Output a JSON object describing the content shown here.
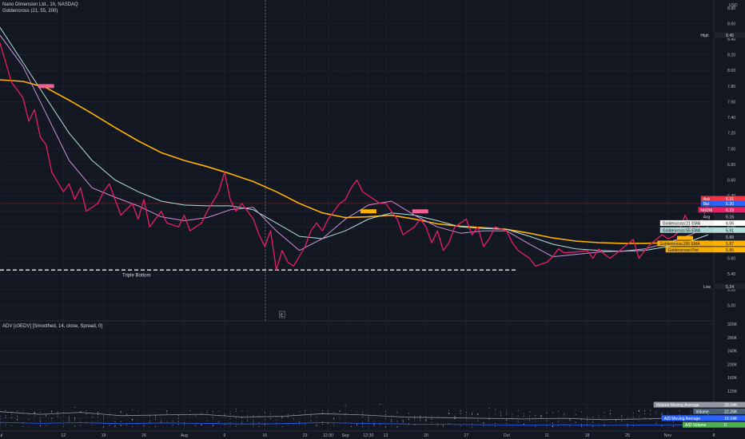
{
  "legend": {
    "symbol_line": "Nano Dimension Ltd., 1h, NASDAQ",
    "indicator_line": "Goldencross (21, 55, 200)",
    "lower_line": "ADV [c0EDV] [Smoothed, 14, close, Spread, 0]"
  },
  "currency": "USD",
  "colors": {
    "background": "#131722",
    "grid": "#1f2333",
    "price": "#e91e63",
    "ma21": "#ce93d8",
    "ma55": "#b2dfdb",
    "ma200": "#ffb300",
    "volume_ma": "#9598a1",
    "ad_ma": "#2962ff",
    "ad_volume": "#4caf50",
    "axis_text": "#b2b5be"
  },
  "chart_data": {
    "type": "line",
    "x_unit": "date",
    "x_ticks": [
      {
        "label": "Jul",
        "x": "2021-07-01"
      },
      {
        "label": "12",
        "x": "2021-07-12"
      },
      {
        "label": "19",
        "x": "2021-07-19"
      },
      {
        "label": "26",
        "x": "2021-07-26"
      },
      {
        "label": "Aug",
        "x": "2021-08-02"
      },
      {
        "label": "9",
        "x": "2021-08-09"
      },
      {
        "label": "16",
        "x": "2021-08-16"
      },
      {
        "label": "23",
        "x": "2021-08-23"
      },
      {
        "label": "12:30",
        "x": "2021-08-27"
      },
      {
        "label": "Sep",
        "x": "2021-08-30"
      },
      {
        "label": "12:30",
        "x": "2021-09-03"
      },
      {
        "label": "13",
        "x": "2021-09-06"
      },
      {
        "label": "20",
        "x": "2021-09-13"
      },
      {
        "label": "27",
        "x": "2021-09-20"
      },
      {
        "label": "Oct",
        "x": "2021-09-27"
      },
      {
        "label": "11",
        "x": "2021-10-04"
      },
      {
        "label": "18",
        "x": "2021-10-11"
      },
      {
        "label": "25",
        "x": "2021-10-18"
      },
      {
        "label": "Nov",
        "x": "2021-10-25"
      },
      {
        "label": "8",
        "x": "2021-11-02"
      }
    ],
    "x_range": [
      "2021-07-01",
      "2021-11-02"
    ],
    "price_axis": {
      "ylim": [
        4.8,
        8.9
      ],
      "ticks": [
        5.0,
        5.2,
        5.4,
        5.6,
        5.8,
        6.0,
        6.2,
        6.4,
        6.6,
        6.8,
        7.0,
        7.2,
        7.4,
        7.6,
        7.8,
        8.0,
        8.2,
        8.4,
        8.6,
        8.8
      ],
      "tick_labels": [
        "5.00",
        "5.20",
        "5.40",
        "5.60",
        "5.80",
        "6.00",
        "6.20",
        "6.40",
        "6.60",
        "6.80",
        "7.00",
        "7.20",
        "7.40",
        "7.60",
        "7.80",
        "8.00",
        "8.20",
        "8.40",
        "8.60",
        "8.80"
      ]
    },
    "volume_axis": {
      "ylim": [
        0,
        330000
      ],
      "ticks": [
        40000,
        80000,
        120000,
        160000,
        200000,
        240000,
        280000,
        320000
      ],
      "tick_labels": [
        "40K",
        "80K",
        "120K",
        "160K",
        "200K",
        "240K",
        "280K",
        "320K"
      ]
    },
    "series": [
      {
        "key": "price",
        "color": "#e91e63",
        "width": 1.3,
        "x": [
          "2021-07-01",
          "2021-07-02",
          "2021-07-03",
          "2021-07-05",
          "2021-07-06",
          "2021-07-07",
          "2021-07-08",
          "2021-07-09",
          "2021-07-10",
          "2021-07-12",
          "2021-07-13",
          "2021-07-14",
          "2021-07-15",
          "2021-07-16",
          "2021-07-18",
          "2021-07-19",
          "2021-07-20",
          "2021-07-21",
          "2021-07-22",
          "2021-07-24",
          "2021-07-25",
          "2021-07-26",
          "2021-07-27",
          "2021-07-29",
          "2021-07-30",
          "2021-08-01",
          "2021-08-02",
          "2021-08-03",
          "2021-08-05",
          "2021-08-06",
          "2021-08-08",
          "2021-08-09",
          "2021-08-10",
          "2021-08-11",
          "2021-08-12",
          "2021-08-14",
          "2021-08-15",
          "2021-08-16",
          "2021-08-17",
          "2021-08-18",
          "2021-08-19",
          "2021-08-20",
          "2021-08-21",
          "2021-08-23",
          "2021-08-24",
          "2021-08-25",
          "2021-08-26",
          "2021-08-27",
          "2021-08-28",
          "2021-08-29",
          "2021-08-30",
          "2021-08-31",
          "2021-09-01",
          "2021-09-02",
          "2021-09-03",
          "2021-09-04",
          "2021-09-05",
          "2021-09-06",
          "2021-09-07",
          "2021-09-08",
          "2021-09-09",
          "2021-09-11",
          "2021-09-12",
          "2021-09-13",
          "2021-09-14",
          "2021-09-15",
          "2021-09-16",
          "2021-09-17",
          "2021-09-18",
          "2021-09-20",
          "2021-09-21",
          "2021-09-22",
          "2021-09-23",
          "2021-09-24",
          "2021-09-25",
          "2021-09-27",
          "2021-09-28",
          "2021-09-29",
          "2021-09-30",
          "2021-10-01",
          "2021-10-02",
          "2021-10-04",
          "2021-10-05",
          "2021-10-06",
          "2021-10-07",
          "2021-10-09",
          "2021-10-11",
          "2021-10-12",
          "2021-10-13",
          "2021-10-14",
          "2021-10-15",
          "2021-10-17",
          "2021-10-18",
          "2021-10-19",
          "2021-10-20",
          "2021-10-21",
          "2021-10-22",
          "2021-10-24",
          "2021-10-25",
          "2021-10-26",
          "2021-10-27",
          "2021-10-28",
          "2021-10-29",
          "2021-10-30",
          "2021-10-31",
          "2021-11-01"
        ],
        "y": [
          8.35,
          8.1,
          7.85,
          7.65,
          7.35,
          7.5,
          7.15,
          7.05,
          6.7,
          6.45,
          6.55,
          6.35,
          6.5,
          6.2,
          6.3,
          6.45,
          6.55,
          6.35,
          6.15,
          6.3,
          6.1,
          6.35,
          6.0,
          6.2,
          6.05,
          6.0,
          6.15,
          5.95,
          6.05,
          6.2,
          6.45,
          6.7,
          6.35,
          6.2,
          6.3,
          6.1,
          5.9,
          5.75,
          5.95,
          5.45,
          5.7,
          5.55,
          5.5,
          5.75,
          5.95,
          6.05,
          5.95,
          6.1,
          6.2,
          6.3,
          6.35,
          6.5,
          6.6,
          6.45,
          6.4,
          6.35,
          6.3,
          6.3,
          6.2,
          6.1,
          5.9,
          6.0,
          6.1,
          6.0,
          5.8,
          5.95,
          5.7,
          5.8,
          6.0,
          6.1,
          5.9,
          6.0,
          5.75,
          5.85,
          6.0,
          5.95,
          5.8,
          5.7,
          5.65,
          5.6,
          5.5,
          5.55,
          5.62,
          5.72,
          5.67,
          5.68,
          5.7,
          5.6,
          5.72,
          5.65,
          5.6,
          5.72,
          5.78,
          5.84,
          5.6,
          5.7,
          5.78,
          5.9,
          5.85,
          5.88,
          5.95,
          6.15,
          6.0,
          5.95,
          6.1,
          6.3
        ]
      },
      {
        "key": "ma21",
        "color": "#ce93d8",
        "width": 1.0,
        "x": [
          "2021-07-01",
          "2021-07-05",
          "2021-07-09",
          "2021-07-13",
          "2021-07-17",
          "2021-07-21",
          "2021-07-25",
          "2021-07-29",
          "2021-08-02",
          "2021-08-06",
          "2021-08-10",
          "2021-08-14",
          "2021-08-18",
          "2021-08-22",
          "2021-08-26",
          "2021-08-30",
          "2021-09-03",
          "2021-09-07",
          "2021-09-11",
          "2021-09-15",
          "2021-09-19",
          "2021-09-23",
          "2021-09-27",
          "2021-10-01",
          "2021-10-05",
          "2021-10-09",
          "2021-10-13",
          "2021-10-17",
          "2021-10-21",
          "2021-10-25",
          "2021-10-29",
          "2021-11-01"
        ],
        "y": [
          8.45,
          8.05,
          7.45,
          6.85,
          6.5,
          6.38,
          6.27,
          6.13,
          6.08,
          6.12,
          6.22,
          6.25,
          5.95,
          5.7,
          5.85,
          6.1,
          6.28,
          6.33,
          6.15,
          6.0,
          5.92,
          5.95,
          5.95,
          5.78,
          5.62,
          5.65,
          5.68,
          5.69,
          5.72,
          5.8,
          5.9,
          6.0
        ]
      },
      {
        "key": "ma55",
        "color": "#b2dfdb",
        "width": 1.0,
        "x": [
          "2021-07-01",
          "2021-07-05",
          "2021-07-09",
          "2021-07-13",
          "2021-07-17",
          "2021-07-21",
          "2021-07-25",
          "2021-07-29",
          "2021-08-02",
          "2021-08-06",
          "2021-08-10",
          "2021-08-14",
          "2021-08-18",
          "2021-08-22",
          "2021-08-26",
          "2021-08-30",
          "2021-09-03",
          "2021-09-07",
          "2021-09-11",
          "2021-09-15",
          "2021-09-19",
          "2021-09-23",
          "2021-09-27",
          "2021-10-01",
          "2021-10-05",
          "2021-10-09",
          "2021-10-13",
          "2021-10-17",
          "2021-10-21",
          "2021-10-25",
          "2021-10-29",
          "2021-11-01"
        ],
        "y": [
          8.55,
          8.1,
          7.65,
          7.2,
          6.85,
          6.6,
          6.45,
          6.33,
          6.28,
          6.27,
          6.27,
          6.22,
          6.05,
          5.88,
          5.85,
          5.95,
          6.1,
          6.18,
          6.15,
          6.08,
          6.0,
          5.98,
          5.97,
          5.88,
          5.78,
          5.72,
          5.7,
          5.69,
          5.7,
          5.75,
          5.82,
          5.9
        ]
      },
      {
        "key": "ma200",
        "color": "#ffb300",
        "width": 1.6,
        "x": [
          "2021-07-01",
          "2021-07-05",
          "2021-07-09",
          "2021-07-13",
          "2021-07-17",
          "2021-07-21",
          "2021-07-25",
          "2021-07-29",
          "2021-08-02",
          "2021-08-06",
          "2021-08-10",
          "2021-08-14",
          "2021-08-18",
          "2021-08-22",
          "2021-08-26",
          "2021-08-30",
          "2021-09-03",
          "2021-09-07",
          "2021-09-11",
          "2021-09-15",
          "2021-09-19",
          "2021-09-23",
          "2021-09-27",
          "2021-10-01",
          "2021-10-05",
          "2021-10-09",
          "2021-10-13",
          "2021-10-17",
          "2021-10-21",
          "2021-10-25",
          "2021-10-29",
          "2021-11-01"
        ],
        "y": [
          7.88,
          7.86,
          7.78,
          7.62,
          7.45,
          7.27,
          7.1,
          6.95,
          6.85,
          6.77,
          6.68,
          6.58,
          6.45,
          6.3,
          6.18,
          6.12,
          6.13,
          6.15,
          6.1,
          6.04,
          6.01,
          5.99,
          5.97,
          5.92,
          5.86,
          5.82,
          5.8,
          5.79,
          5.79,
          5.8,
          5.81,
          5.82
        ]
      }
    ],
    "lower_series": [
      {
        "key": "volume_ma",
        "color": "#9598a1",
        "x": [
          "2021-07-01",
          "2021-07-08",
          "2021-07-15",
          "2021-07-22",
          "2021-07-29",
          "2021-08-05",
          "2021-08-12",
          "2021-08-19",
          "2021-08-26",
          "2021-09-02",
          "2021-09-09",
          "2021-09-16",
          "2021-09-23",
          "2021-09-30",
          "2021-10-07",
          "2021-10-14",
          "2021-10-21",
          "2021-10-28",
          "2021-11-01"
        ],
        "y": [
          58000,
          50000,
          56000,
          46000,
          48000,
          50000,
          42000,
          44000,
          52000,
          48000,
          42000,
          40000,
          38000,
          36000,
          38000,
          34000,
          36000,
          40000,
          36000
        ]
      },
      {
        "key": "ad_ma",
        "color": "#2962ff",
        "x": [
          "2021-07-01",
          "2021-07-08",
          "2021-07-15",
          "2021-07-22",
          "2021-07-29",
          "2021-08-05",
          "2021-08-12",
          "2021-08-19",
          "2021-08-26",
          "2021-09-02",
          "2021-09-09",
          "2021-09-16",
          "2021-09-23",
          "2021-09-30",
          "2021-10-07",
          "2021-10-14",
          "2021-10-21",
          "2021-10-28",
          "2021-11-01"
        ],
        "y": [
          26000,
          23000,
          25000,
          22000,
          24000,
          23000,
          21000,
          22000,
          25000,
          23000,
          21000,
          20000,
          19000,
          18000,
          19000,
          17000,
          18000,
          19000,
          16000
        ]
      }
    ],
    "annotations": {
      "triple_bottom": {
        "label": "Triple Bottom",
        "y": 5.45
      },
      "high_line": {
        "y": 6.3
      },
      "crossovers": [
        {
          "x": "2021-07-09",
          "y": 7.8,
          "color": "#f06292"
        },
        {
          "x": "2021-09-03",
          "y": 6.2,
          "color": "#ffb300"
        },
        {
          "x": "2021-09-12",
          "y": 6.2,
          "color": "#f06292"
        },
        {
          "x": "2021-10-28",
          "y": 5.86,
          "color": "#ffb300"
        }
      ],
      "event_marker": {
        "x": "2021-08-19",
        "label": "E"
      }
    },
    "price_labels": [
      {
        "name": "High",
        "value": "8.45",
        "y": 8.45,
        "bg": "#1e222d",
        "label_bg": "#131722",
        "fg": "#d1d4dc"
      },
      {
        "name": "Ask",
        "value": "6.31",
        "y": 6.36,
        "bg": "#f23645",
        "label_bg": "#f23645",
        "fg": "#ffffff"
      },
      {
        "name": "Bid",
        "value": "6.30",
        "y": 6.3,
        "bg": "#2962ff",
        "label_bg": "#2962ff",
        "fg": "#ffffff"
      },
      {
        "name": "NNDM",
        "value": "6.29",
        "y": 6.22,
        "bg": "#e91e63",
        "label_bg": "#e91e63",
        "fg": "#ffffff"
      },
      {
        "name": "Avg",
        "value": "6.16",
        "y": 6.13,
        "bg": "#1e222d",
        "label_bg": "#131722",
        "fg": "#d1d4dc"
      },
      {
        "name": "Goldencross:21 EMA",
        "value": "6.06",
        "y": 6.05,
        "bg": "#ffffff",
        "label_bg": "#ffffff",
        "fg": "#131722"
      },
      {
        "name": "Goldencross:55 EMA",
        "value": "5.91",
        "y": 5.96,
        "bg": "#b2dfdb",
        "label_bg": "#b2dfdb",
        "fg": "#131722"
      },
      {
        "name": "",
        "value": "5.89",
        "y": 5.87,
        "bg": "#1e222d",
        "label_bg": "#131722",
        "fg": "#d1d4dc"
      },
      {
        "name": "Goldencross:200 EMA",
        "value": "5.87",
        "y": 5.79,
        "bg": "#ffb300",
        "label_bg": "#ffb300",
        "fg": "#131722"
      },
      {
        "name": "Goldencross:Plot",
        "value": "5.85",
        "y": 5.71,
        "bg": "#ffb300",
        "label_bg": "#ffb300",
        "fg": "#131722"
      },
      {
        "name": "Low",
        "value": "5.24",
        "y": 5.24,
        "bg": "#1e222d",
        "label_bg": "#131722",
        "fg": "#d1d4dc"
      }
    ],
    "volume_labels": [
      {
        "name": "Volume Moving Average",
        "value": "30.04K",
        "bg": "#9598a1"
      },
      {
        "name": "Volume",
        "value": "22.26K",
        "bg": "#4a6075"
      },
      {
        "name": "A/D Moving Average",
        "value": "16.04K",
        "bg": "#2962ff"
      },
      {
        "name": "A/D Volume",
        "value": "0",
        "bg": "#4caf50"
      }
    ]
  }
}
